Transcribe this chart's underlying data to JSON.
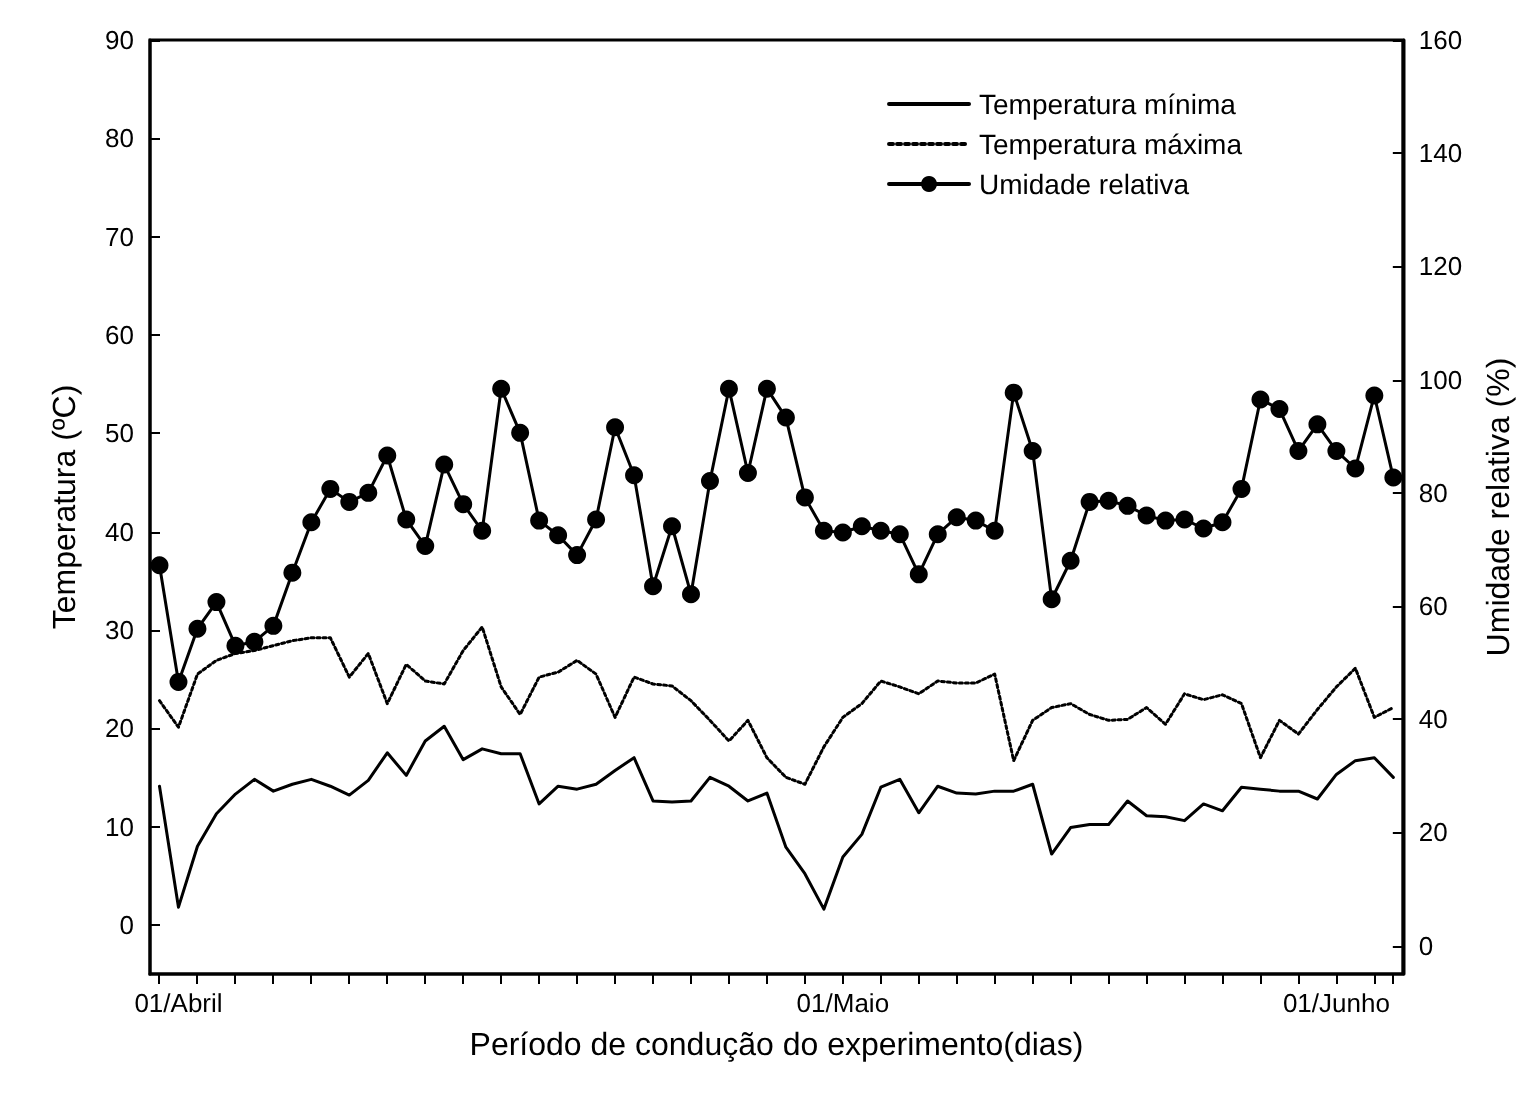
{
  "chart_data": {
    "type": "line",
    "xlabel": "Período de condução do experimento(dias)",
    "ylabel": "Temperatura (ºC)",
    "y2label": "Umidade relativa (%)",
    "categories": [
      null,
      "01/Abril",
      null,
      null,
      null,
      null,
      null,
      null,
      null,
      null,
      null,
      null,
      null,
      null,
      null,
      null,
      null,
      null,
      null,
      null,
      null,
      null,
      null,
      null,
      null,
      null,
      null,
      null,
      null,
      null,
      null,
      null,
      null,
      null,
      null,
      null,
      "01/Maio",
      null,
      null,
      null,
      null,
      null,
      null,
      null,
      null,
      null,
      null,
      null,
      null,
      null,
      null,
      null,
      null,
      null,
      null,
      null,
      null,
      null,
      null,
      null,
      null,
      null,
      "01/Junho",
      null,
      null,
      null
    ],
    "series": [
      {
        "name": "Temperatura mínima",
        "color": "#000000",
        "line_style": "solid",
        "marker": "none",
        "values": [
          14.1,
          1.8,
          8,
          11.3,
          13.3,
          14.8,
          13.6,
          14.3,
          14.8,
          14.1,
          13.2,
          14.7,
          17.5,
          15.2,
          18.7,
          20.2,
          16.8,
          17.9,
          17.4,
          17.4,
          12.3,
          14.1,
          13.8,
          14.3,
          15.7,
          17.0,
          12.6,
          12.5,
          12.6,
          15.0,
          14.1,
          12.6,
          13.4,
          7.9,
          5.2,
          1.6,
          6.9,
          9.2,
          14.0,
          14.8,
          11.4,
          14.1,
          13.4,
          13.3,
          13.6,
          13.6,
          14.3,
          7.2,
          9.9,
          10.2,
          10.2,
          12.6,
          11.1,
          11.0,
          10.6,
          12.3,
          11.6,
          14.0,
          13.8,
          13.6,
          13.6,
          12.8,
          15.3,
          16.7,
          17.0,
          15.0
        ]
      },
      {
        "name": "Temperatura máxima",
        "color": "#000000",
        "line_style": "dotted",
        "marker": "none",
        "values": [
          22.8,
          20.1,
          25.5,
          26.9,
          27.6,
          27.9,
          28.4,
          28.9,
          29.2,
          29.2,
          25.2,
          27.6,
          22.5,
          26.5,
          24.8,
          24.5,
          27.9,
          30.3,
          24.2,
          21.4,
          25.2,
          25.7,
          26.9,
          25.5,
          21.1,
          25.2,
          24.5,
          24.3,
          22.8,
          20.8,
          18.7,
          20.8,
          17.0,
          15.0,
          14.3,
          18.1,
          21.1,
          22.5,
          24.8,
          24.2,
          23.5,
          24.8,
          24.6,
          24.6,
          25.5,
          16.7,
          20.8,
          22.1,
          22.5,
          21.4,
          20.8,
          20.9,
          22.1,
          20.4,
          23.5,
          22.9,
          23.4,
          22.5,
          17.0,
          20.8,
          19.4,
          21.9,
          24.2,
          26.1,
          21.1,
          22.1
        ]
      },
      {
        "name": "Umidade relativa",
        "color": "#000000",
        "line_style": "solid",
        "marker": "circle",
        "axis": "y2",
        "values": [
          67.2,
          46.6,
          56,
          60.7,
          53,
          53.7,
          56.5,
          65.9,
          74.8,
          80.7,
          78.4,
          80,
          86.6,
          75.3,
          70.6,
          85,
          78,
          73.3,
          98.4,
          90.6,
          75.1,
          72.5,
          69,
          75.3,
          91.6,
          83.1,
          63.5,
          74.1,
          62.1,
          82.1,
          98.4,
          83.5,
          98.4,
          93.3,
          79.2,
          73.3,
          73,
          74.1,
          73.3,
          72.7,
          65.6,
          72.7,
          75.7,
          75.1,
          73.3,
          97.7,
          87.4,
          61.2,
          68,
          78.4,
          78.6,
          77.7,
          76,
          75.1,
          75.3,
          73.7,
          74.8,
          80.7,
          96.5,
          94.8,
          87.4,
          92.1,
          87.4,
          84.3,
          97.2,
          82.7
        ]
      }
    ],
    "ylim": [
      -5,
      90
    ],
    "yticks": [
      0,
      10,
      20,
      30,
      40,
      50,
      60,
      70,
      80,
      90
    ],
    "y2lim": [
      -5,
      160
    ],
    "y2ticks": [
      0,
      20,
      40,
      60,
      80,
      100,
      120,
      140,
      160
    ],
    "grid": false,
    "legend": "top right"
  }
}
